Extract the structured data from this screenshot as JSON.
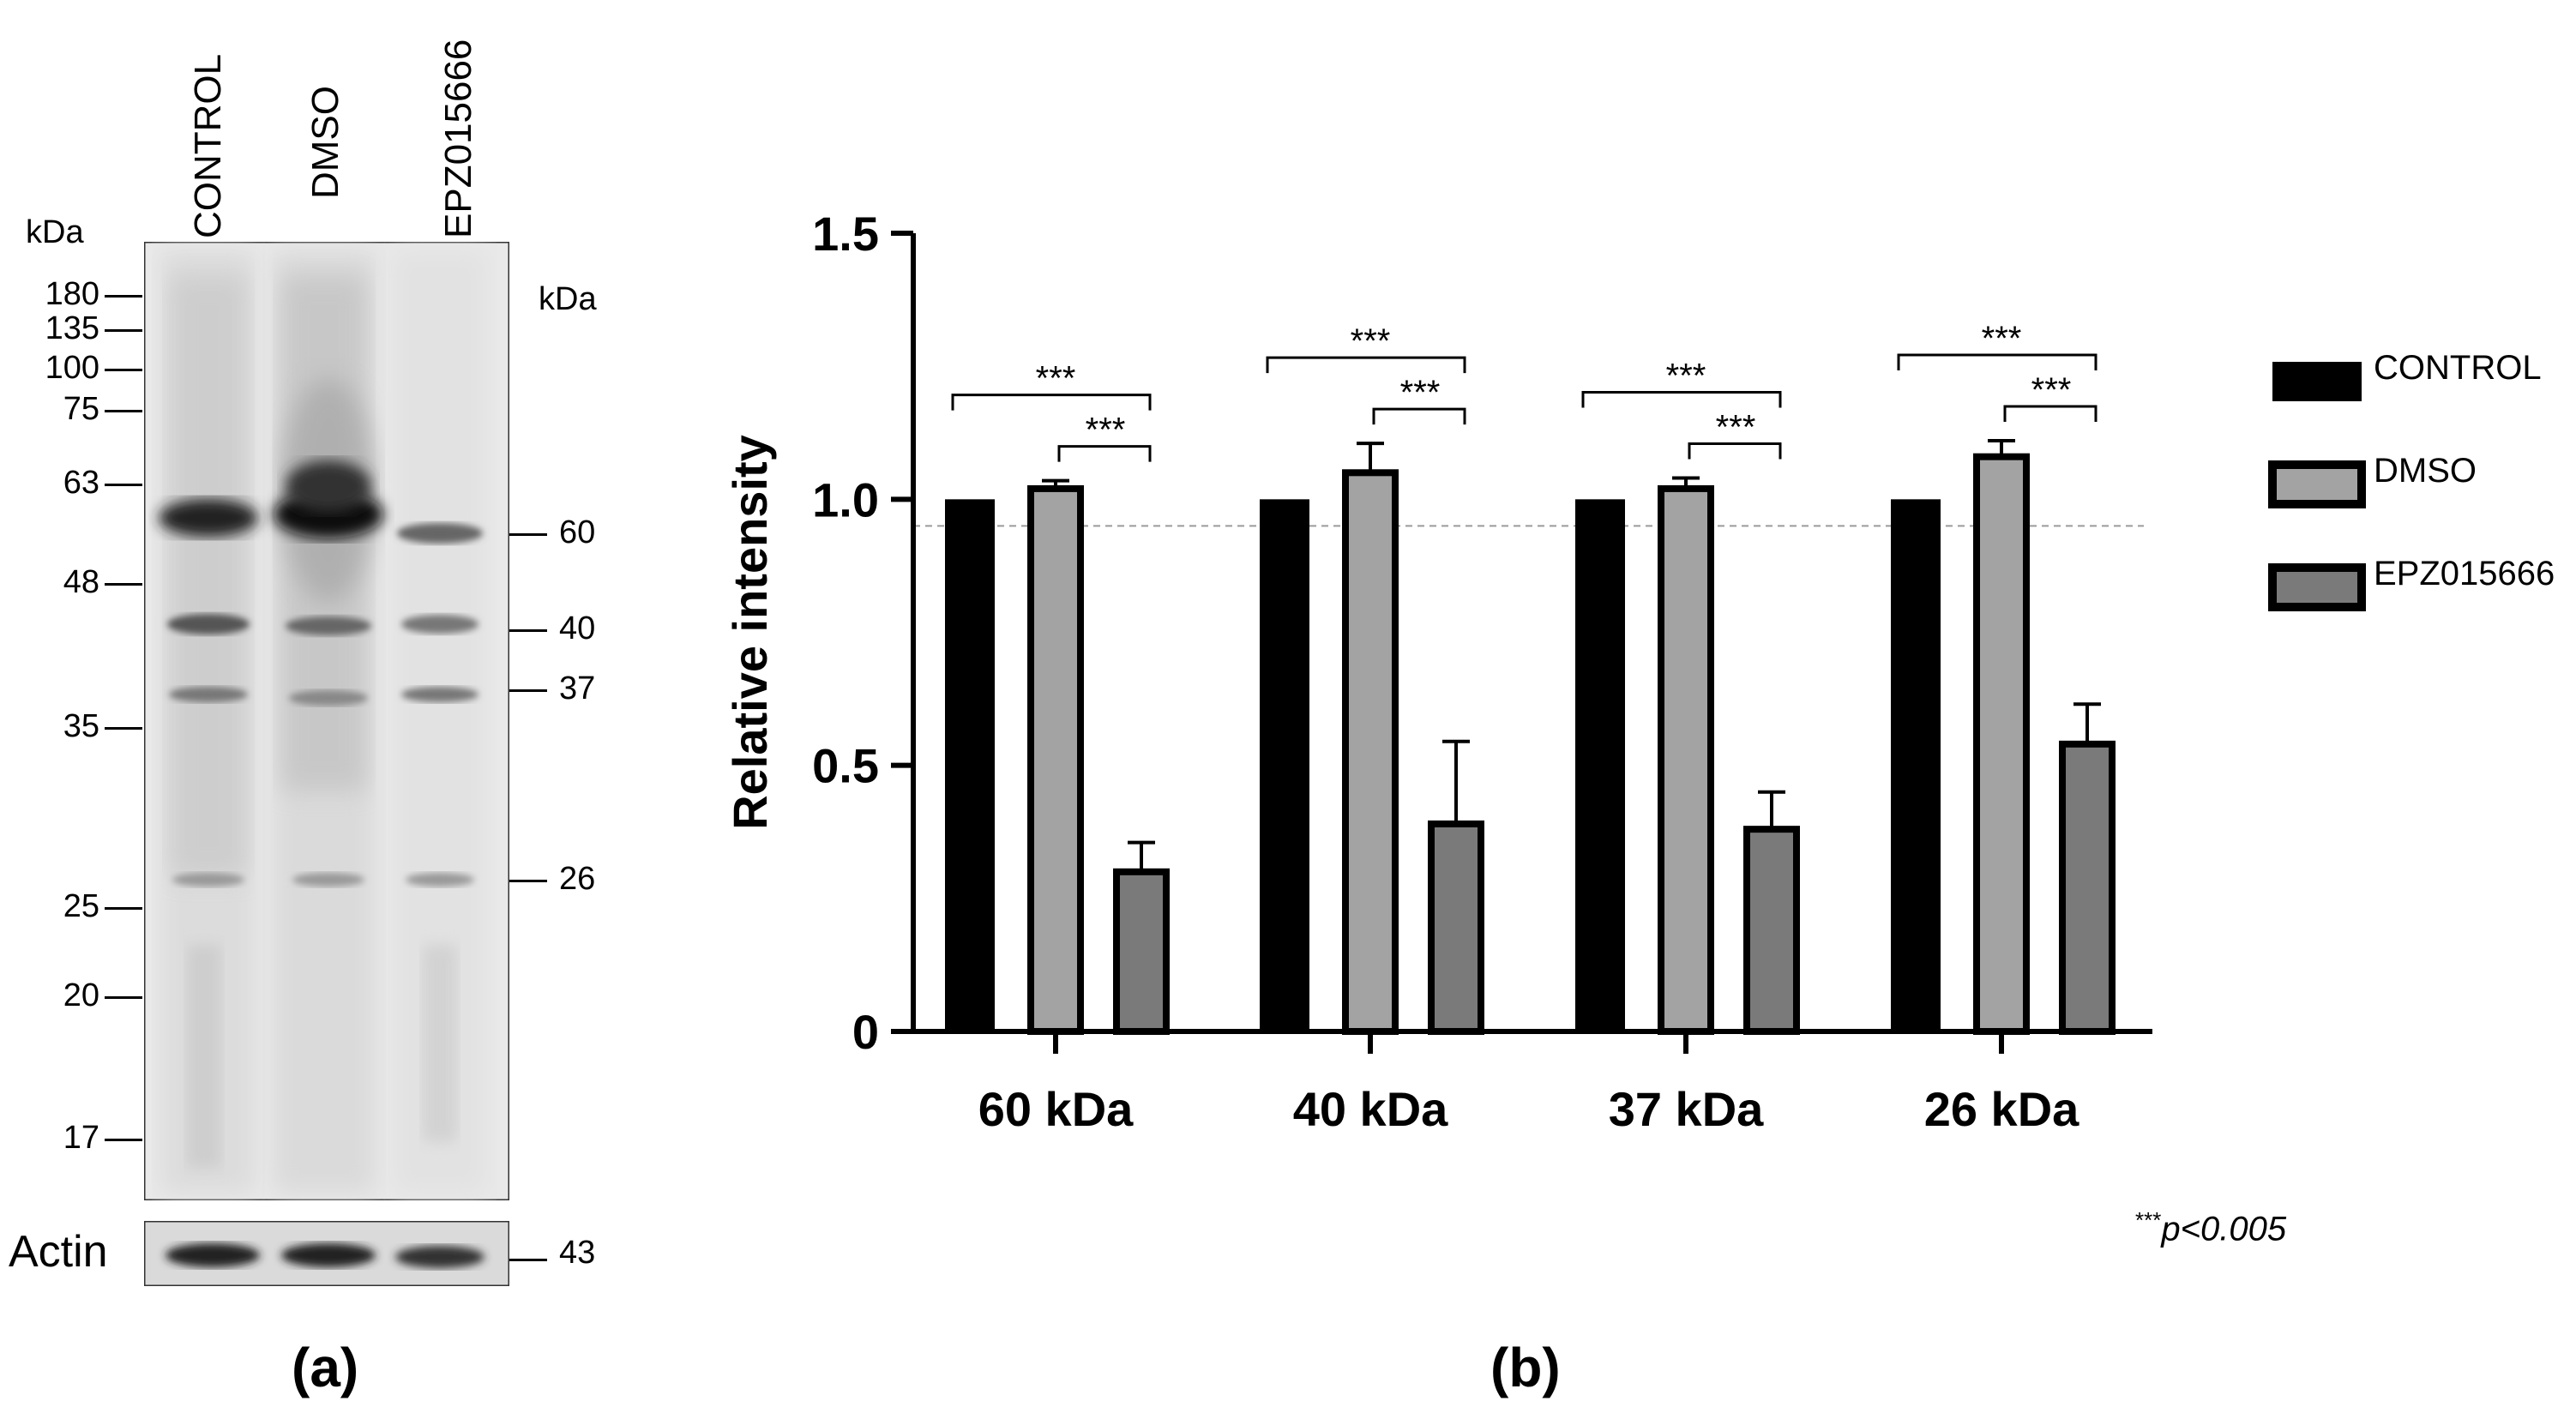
{
  "panel_a": {
    "letter": "(a)",
    "kda_left": "kDa",
    "kda_right": "kDa",
    "lanes": [
      "CONTROL",
      "DMSO",
      "EPZ015666"
    ],
    "markers_left": [
      "180",
      "135",
      "100",
      "75",
      "63",
      "48",
      "35",
      "25",
      "20",
      "17"
    ],
    "markers_right": [
      "60",
      "40",
      "37",
      "26"
    ],
    "actin_label": "Actin",
    "actin_mw": "43"
  },
  "panel_b": {
    "letter": "(b)",
    "pvalue_stars": "***",
    "pvalue_text": "p<0.005"
  },
  "chart_data": {
    "type": "bar",
    "title": "",
    "xlabel": "",
    "ylabel": "Relative intensity",
    "ylim": [
      0,
      1.5
    ],
    "yticks": [
      "0",
      "0.5",
      "1.0",
      "1.5"
    ],
    "categories": [
      "60 kDa",
      "40 kDa",
      "37 kDa",
      "26 kDa"
    ],
    "series": [
      {
        "name": "CONTROL",
        "color": "#000000",
        "values": [
          1.0,
          1.0,
          1.0,
          1.0
        ],
        "errors": [
          0,
          0,
          0,
          0
        ]
      },
      {
        "name": "DMSO",
        "color": "#a3a3a3",
        "values": [
          1.02,
          1.05,
          1.02,
          1.08
        ],
        "errors": [
          0.015,
          0.055,
          0.02,
          0.03
        ]
      },
      {
        "name": "EPZ015666",
        "color": "#7a7a7a",
        "values": [
          0.3,
          0.39,
          0.38,
          0.54
        ],
        "errors": [
          0.055,
          0.155,
          0.07,
          0.075
        ]
      }
    ],
    "significance_label": "***",
    "legend_position": "right",
    "reference_line_y": 0.95
  }
}
